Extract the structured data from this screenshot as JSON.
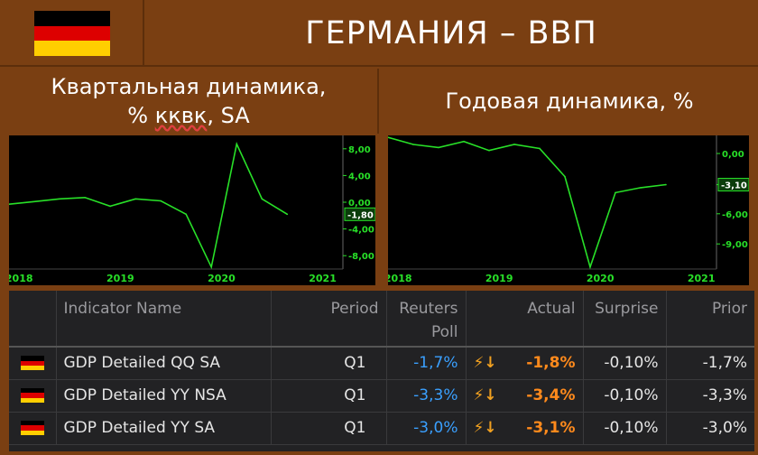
{
  "header": {
    "title": "ГЕРМАНИЯ – ВВП",
    "flag_colors": [
      "#000000",
      "#dd0000",
      "#ffce00"
    ]
  },
  "subtitles": {
    "left_line1": "Квартальная динамика,",
    "left_line2a": "% ",
    "left_line2b": "кквк",
    "left_line2c": ", SA",
    "right": "Годовая динамика, %"
  },
  "chart_data": [
    {
      "type": "line",
      "series": [
        {
          "values": [
            -0.3,
            0.1,
            0.5,
            0.7,
            -0.6,
            0.5,
            0.2,
            -1.8,
            -9.7,
            8.7,
            0.5,
            -1.8
          ]
        }
      ],
      "x": [
        2017.75,
        2018.0,
        2018.25,
        2018.5,
        2018.75,
        2019.0,
        2019.25,
        2019.5,
        2019.75,
        2020.0,
        2020.25,
        2020.5
      ],
      "x_ticks": [
        "2018",
        "2019",
        "2020",
        "2021"
      ],
      "y_ticks": [
        "8,00",
        "4,00",
        "0,00",
        "-4,00",
        "-8,00"
      ],
      "last_value_label": "-1,80",
      "ylim": [
        -10,
        10
      ],
      "color": "#28e028"
    },
    {
      "type": "line",
      "series": [
        {
          "values": [
            1.6,
            0.9,
            0.6,
            1.2,
            0.3,
            0.9,
            0.5,
            -2.3,
            -11.3,
            -3.9,
            -3.4,
            -3.1
          ]
        }
      ],
      "x": [
        2017.75,
        2018.0,
        2018.25,
        2018.5,
        2018.75,
        2019.0,
        2019.25,
        2019.5,
        2019.75,
        2020.0,
        2020.25,
        2020.5
      ],
      "x_ticks": [
        "2018",
        "2019",
        "2020",
        "2021"
      ],
      "y_ticks": [
        "0,00",
        "-3,10",
        "-6,00",
        "-9,00"
      ],
      "last_value_label": "-3,10",
      "ylim": [
        -11.5,
        1.8
      ],
      "color": "#28e028"
    }
  ],
  "table": {
    "headers": {
      "name": "Indicator Name",
      "period": "Period",
      "poll1": "Reuters",
      "poll2": "Poll",
      "actual": "Actual",
      "surprise": "Surprise",
      "prior": "Prior"
    },
    "rows": [
      {
        "name": "GDP Detailed QQ SA",
        "period": "Q1",
        "poll": "-1,7%",
        "bolt": "⚡↓",
        "actual": "-1,8%",
        "surprise": "-0,10%",
        "prior": "-1,7%"
      },
      {
        "name": "GDP Detailed YY NSA",
        "period": "Q1",
        "poll": "-3,3%",
        "bolt": "⚡↓",
        "actual": "-3,4%",
        "surprise": "-0,10%",
        "prior": "-3,3%"
      },
      {
        "name": "GDP Detailed YY SA",
        "period": "Q1",
        "poll": "-3,0%",
        "bolt": "⚡↓",
        "actual": "-3,1%",
        "surprise": "-0,10%",
        "prior": "-3,0%"
      }
    ]
  }
}
